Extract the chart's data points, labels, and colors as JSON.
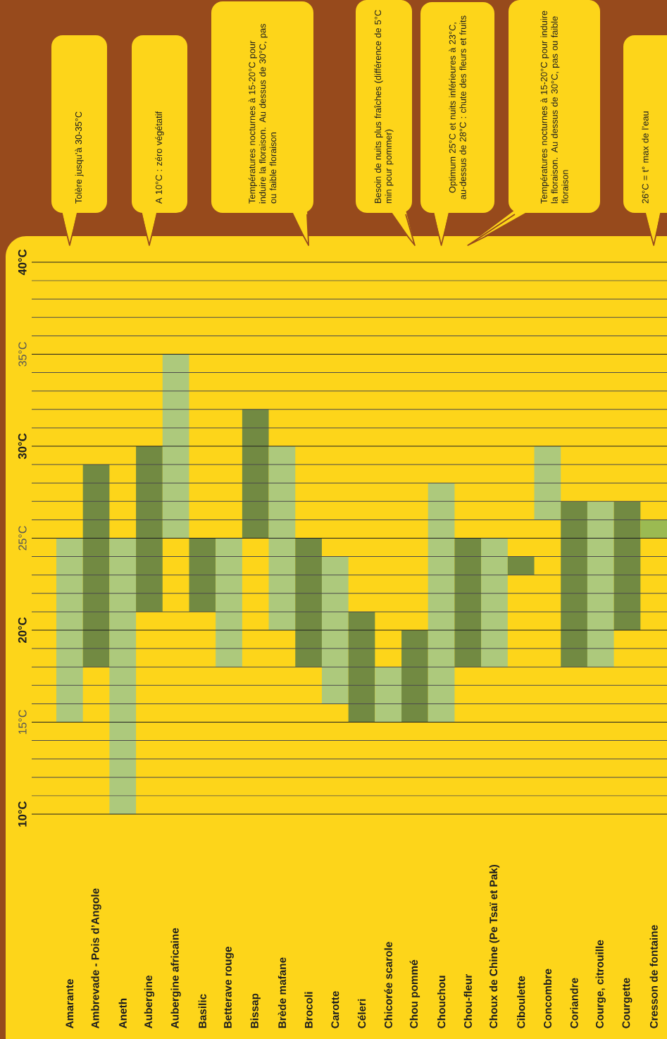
{
  "chart_data": {
    "type": "bar",
    "categories": [
      "Amarante",
      "Ambrevade - Pois d’Angole",
      "Aneth",
      "Aubergine",
      "Aubergine africaine",
      "Basilic",
      "Betterave rouge",
      "Bissap",
      "Brède mafane",
      "Brocoli",
      "Carotte",
      "Céleri",
      "Chicorée scarole",
      "Chou pommé",
      "Chouchou",
      "Chou-fleur",
      "Choux de Chine (Pe Tsaï et Pak)",
      "Ciboulette",
      "Concombre",
      "Coriandre",
      "Courge, citrouille",
      "Courgette",
      "Cresson de fontaine"
    ],
    "base": [
      15,
      18,
      10,
      21,
      25,
      21,
      18,
      25,
      20,
      18,
      16,
      15,
      15,
      15,
      15,
      18,
      18,
      23,
      26,
      18,
      18,
      20,
      25
    ],
    "values": [
      10,
      11,
      15,
      9,
      10,
      4,
      7,
      7,
      10,
      7,
      8,
      6,
      3,
      5,
      13,
      7,
      7,
      1,
      4,
      9,
      9,
      7,
      1
    ],
    "colors": [
      "#adc97c",
      "#728a42",
      "#adc97c",
      "#728a42",
      "#adc97c",
      "#728a42",
      "#adc97c",
      "#728a42",
      "#adc97c",
      "#728a42",
      "#adc97c",
      "#728a42",
      "#adc97c",
      "#728a42",
      "#adc97c",
      "#728a42",
      "#adc97c",
      "#728a42",
      "#adc97c",
      "#728a42",
      "#adc97c",
      "#728a42",
      "#9bba52"
    ],
    "ylim": [
      10,
      40
    ],
    "yticks": [
      {
        "value": 10,
        "label": "10°C"
      },
      {
        "value": 15,
        "label": "15°C"
      },
      {
        "value": 20,
        "label": "20°C"
      },
      {
        "value": 25,
        "label": "25°C"
      },
      {
        "value": 30,
        "label": "30°C"
      },
      {
        "value": 35,
        "label": "35°C"
      },
      {
        "value": 40,
        "label": "40°C"
      }
    ],
    "grid": "y",
    "annotations": [
      "Tolère jusqu’à 30-35°C",
      "A 10°C : zéro végétatif",
      "Températures nocturnes à 15-20°C pour induire la floraison. Au dessus de 30°C, pas ou faible floraison",
      "Besoin de nuits plus fraîches (différence de 5°C min pour pommer)",
      "Optimum 25°C et nuits inférieures à 23°C, au-dessus de 28°C : chute des fleurs et fruits",
      "Températures nocturnes à 15-20°C pour induire la floraison. Au dessus de 30°C, pas ou faible floraison",
      "26°C = t° max de l’eau"
    ]
  }
}
